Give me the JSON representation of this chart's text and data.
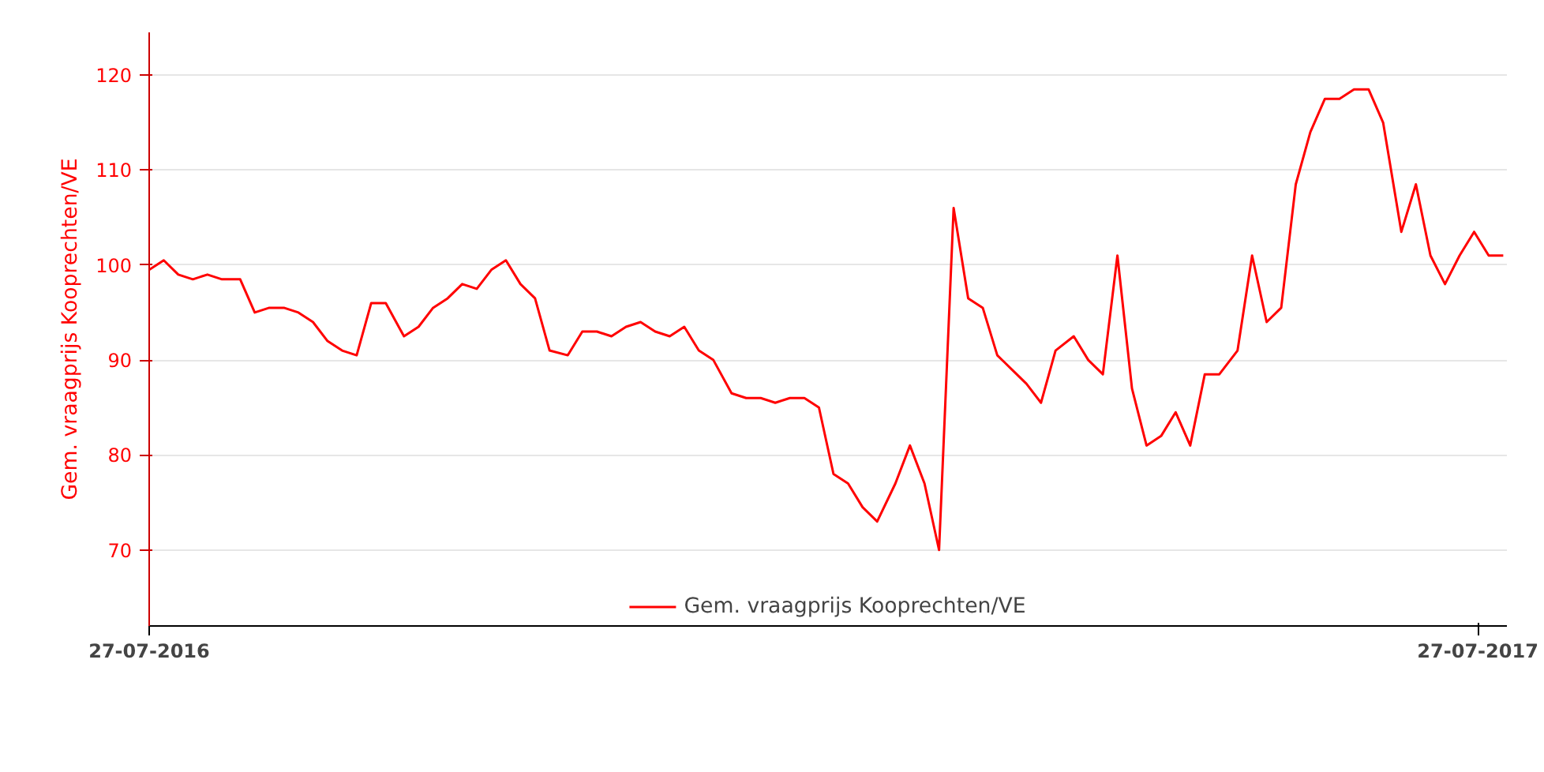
{
  "chart_data": {
    "type": "line",
    "ylabel": "Gem. vraagprijs Kooprechten/VE",
    "x": [
      "2016-07-27",
      "2016-07-31",
      "2016-08-04",
      "2016-08-08",
      "2016-08-12",
      "2016-08-16",
      "2016-08-21",
      "2016-08-25",
      "2016-08-29",
      "2016-09-02",
      "2016-09-06",
      "2016-09-10",
      "2016-09-14",
      "2016-09-18",
      "2016-09-22",
      "2016-09-26",
      "2016-09-30",
      "2016-10-05",
      "2016-10-09",
      "2016-10-13",
      "2016-10-17",
      "2016-10-21",
      "2016-10-25",
      "2016-10-29",
      "2016-11-02",
      "2016-11-06",
      "2016-11-10",
      "2016-11-14",
      "2016-11-19",
      "2016-11-23",
      "2016-11-27",
      "2016-12-01",
      "2016-12-05",
      "2016-12-09",
      "2016-12-13",
      "2016-12-17",
      "2016-12-21",
      "2016-12-25",
      "2016-12-29",
      "2017-01-03",
      "2017-01-07",
      "2017-01-11",
      "2017-01-15",
      "2017-01-19",
      "2017-01-23",
      "2017-01-27",
      "2017-01-31",
      "2017-02-04",
      "2017-02-08",
      "2017-02-12",
      "2017-02-17",
      "2017-02-21",
      "2017-02-25",
      "2017-03-01",
      "2017-03-05",
      "2017-03-09",
      "2017-03-13",
      "2017-03-17",
      "2017-03-21",
      "2017-03-25",
      "2017-03-29",
      "2017-04-02",
      "2017-04-07",
      "2017-04-11",
      "2017-04-15",
      "2017-04-19",
      "2017-04-23",
      "2017-04-27",
      "2017-05-01",
      "2017-05-05",
      "2017-05-09",
      "2017-05-13",
      "2017-05-17",
      "2017-05-22",
      "2017-05-26",
      "2017-05-30",
      "2017-06-03",
      "2017-06-07",
      "2017-06-11",
      "2017-06-15",
      "2017-06-19",
      "2017-06-23",
      "2017-06-27",
      "2017-07-01",
      "2017-07-06",
      "2017-07-10",
      "2017-07-14",
      "2017-07-18",
      "2017-07-22",
      "2017-07-26",
      "2017-07-30",
      "2017-08-03"
    ],
    "series": [
      {
        "name": "Gem. vraagprijs Kooprechten/VE",
        "color": "#ff0000",
        "values": [
          99.5,
          100.5,
          99,
          98.5,
          99,
          98.5,
          98.5,
          95,
          95.5,
          95.5,
          95,
          94,
          92,
          91,
          90.5,
          96,
          96,
          92.5,
          93.5,
          95.5,
          96.5,
          98,
          97.5,
          99.5,
          100.5,
          98,
          96.5,
          91,
          90.5,
          93,
          93,
          92.5,
          93.5,
          94,
          93,
          92.5,
          93.5,
          91,
          90,
          86.5,
          86,
          86,
          85.5,
          86,
          86,
          85,
          78,
          77,
          74.5,
          73,
          77,
          81,
          77,
          70,
          106,
          96.5,
          95.5,
          90.5,
          89,
          87.5,
          85.5,
          91,
          92.5,
          90,
          88.5,
          101,
          87,
          81,
          82,
          84.5,
          81,
          88.5,
          88.5,
          91,
          101,
          94,
          95.5,
          108.5,
          114,
          117.5,
          117.5,
          118.5,
          118.5,
          115,
          103.5,
          108.5,
          101,
          98,
          101,
          103.5,
          101,
          101
        ]
      }
    ],
    "xlim": [
      "2016-07-27",
      "2017-08-04"
    ],
    "xticks": [
      {
        "value": "2016-07-27",
        "label": "27-07-2016"
      },
      {
        "value": "2017-07-27",
        "label": "27-07-2017"
      }
    ],
    "ylim": [
      62,
      124.5
    ],
    "yticks": [
      70,
      80,
      90,
      100,
      110,
      120
    ],
    "grid": "y",
    "legend": "bottom",
    "marker": "none",
    "line_style": "solid"
  }
}
